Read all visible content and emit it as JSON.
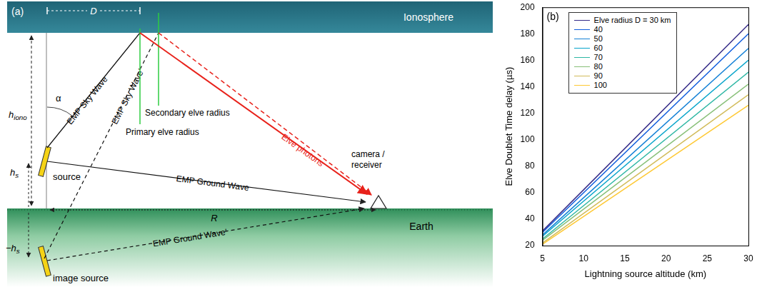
{
  "diagram": {
    "panel_label": "(a)",
    "ionosphere": "Ionosphere",
    "radius_label": "D",
    "h_iono": {
      "text": "h",
      "sub": "iono"
    },
    "h_s": {
      "text": "h",
      "sub": "s"
    },
    "minus_h_s": {
      "text": "−h",
      "sub": "s"
    },
    "angle_label": "α",
    "sky_wave": "EMP Sky Wave",
    "sky_wave_image": "EMP Sky Wave'",
    "secondary_radius": "Secondary elve radius",
    "primary_radius": "Primary elve radius",
    "photons": "Elve photons",
    "receiver": "camera / receiver",
    "source": "source",
    "ground_wave": "EMP Ground Wave",
    "distance": "R",
    "earth": "Earth",
    "ground_wave_image": "EMP Ground Wave'",
    "image_source": "image source"
  },
  "chart_data": {
    "type": "line",
    "panel_label": "(b)",
    "x_label": "Lightning source altitude (km)",
    "y_label": "Elve Doublet Time delay (µs)",
    "x": [
      5,
      30
    ],
    "series": [
      {
        "name": "Elve radius D = 30 km",
        "color": "#352a87",
        "values": [
          31,
          187
        ]
      },
      {
        "name": "40",
        "color": "#0f5cdd",
        "values": [
          30,
          180
        ]
      },
      {
        "name": "50",
        "color": "#1481d6",
        "values": [
          28,
          169
        ]
      },
      {
        "name": "60",
        "color": "#06a4ca",
        "values": [
          27,
          160
        ]
      },
      {
        "name": "70",
        "color": "#2eb7a4",
        "values": [
          25,
          151
        ]
      },
      {
        "name": "80",
        "color": "#87bf77",
        "values": [
          24,
          142
        ]
      },
      {
        "name": "90",
        "color": "#d1bb59",
        "values": [
          22,
          134
        ]
      },
      {
        "name": "100",
        "color": "#fec832",
        "values": [
          21,
          126
        ]
      }
    ],
    "xlim": [
      5,
      30
    ],
    "xticks": [
      5,
      10,
      15,
      20,
      25,
      30
    ],
    "ylim": [
      20,
      200
    ],
    "yticks": [
      20,
      40,
      60,
      80,
      100,
      120,
      140,
      160,
      180,
      200
    ],
    "grid": false,
    "legend": "top-left"
  }
}
